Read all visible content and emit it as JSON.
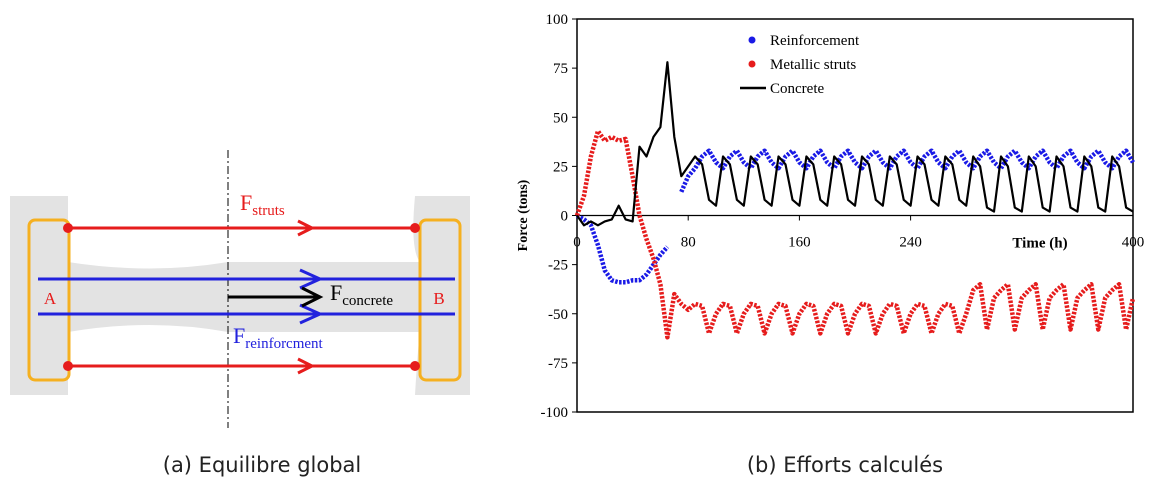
{
  "diagram": {
    "struts": {
      "symbol": "F",
      "subscript": "struts"
    },
    "concrete": {
      "symbol": "F",
      "subscript": "concrete"
    },
    "reinforcement": {
      "symbol": "F",
      "subscript": "reinforcment"
    },
    "left_end": "A",
    "right_end": "B"
  },
  "captions": [
    "(a) Equilibre global",
    "(b) Efforts calculés"
  ],
  "chart_data": {
    "type": "line",
    "y_label": "Force (tons)",
    "x_label": "Time (h)",
    "xlim": [
      0,
      400
    ],
    "ylim": [
      -100,
      100
    ],
    "xticks": [
      0,
      80,
      160,
      240,
      400
    ],
    "yticks": [
      -100,
      -75,
      -50,
      -25,
      0,
      25,
      50,
      75,
      100
    ],
    "grid": false,
    "legend": "upper right",
    "x": [
      0,
      5,
      10,
      15,
      20,
      25,
      30,
      35,
      40,
      45,
      50,
      55,
      60,
      65,
      70,
      75,
      80,
      85,
      90,
      95,
      100,
      105,
      110,
      115,
      120,
      125,
      130,
      135,
      140,
      145,
      150,
      155,
      160,
      165,
      170,
      175,
      180,
      185,
      190,
      195,
      200,
      205,
      210,
      215,
      220,
      225,
      230,
      235,
      240,
      245,
      250,
      255,
      260,
      265,
      270,
      275,
      280,
      285,
      290,
      295,
      300,
      305,
      310,
      315,
      320,
      325,
      330,
      335,
      340,
      345,
      350,
      355,
      360,
      365,
      370,
      375,
      380,
      385,
      390,
      395,
      400
    ],
    "series": [
      {
        "name": "Reinforcement",
        "color": "#1a1ae6",
        "mode": "markers",
        "values": [
          0,
          -2,
          -5,
          -15,
          -28,
          -33,
          -34,
          -34,
          -33,
          -33,
          -30,
          -25,
          -20,
          -16,
          null,
          12,
          20,
          24,
          30,
          33,
          27,
          24,
          30,
          33,
          27,
          24,
          30,
          33,
          27,
          24,
          30,
          33,
          27,
          24,
          30,
          33,
          27,
          24,
          30,
          33,
          27,
          24,
          30,
          33,
          27,
          24,
          30,
          33,
          27,
          24,
          30,
          33,
          27,
          24,
          30,
          33,
          27,
          24,
          30,
          33,
          27,
          24,
          30,
          33,
          27,
          24,
          30,
          33,
          27,
          24,
          30,
          33,
          27,
          24,
          30,
          33,
          27,
          24,
          30,
          33,
          27
        ]
      },
      {
        "name": "Metallic struts",
        "color": "#e61c1c",
        "mode": "markers",
        "values": [
          0,
          10,
          30,
          43,
          38,
          40,
          38,
          39,
          20,
          0,
          -12,
          -22,
          -35,
          -62,
          -40,
          -45,
          -48,
          -45,
          -46,
          -60,
          -50,
          -45,
          -46,
          -60,
          -50,
          -45,
          -46,
          -60,
          -50,
          -45,
          -46,
          -60,
          -50,
          -45,
          -46,
          -60,
          -50,
          -45,
          -46,
          -60,
          -50,
          -45,
          -46,
          -60,
          -50,
          -45,
          -46,
          -60,
          -50,
          -45,
          -46,
          -60,
          -50,
          -45,
          -46,
          -60,
          -50,
          -38,
          -35,
          -58,
          -42,
          -38,
          -35,
          -58,
          -42,
          -38,
          -35,
          -58,
          -42,
          -38,
          -35,
          -58,
          -42,
          -38,
          -35,
          -58,
          -42,
          -38,
          -35,
          -58,
          -42
        ]
      },
      {
        "name": "Concrete",
        "color": "#000000",
        "mode": "lines",
        "values": [
          0,
          -5,
          -3,
          -5,
          -3,
          -2,
          5,
          -2,
          -3,
          35,
          30,
          40,
          45,
          78,
          40,
          20,
          25,
          30,
          26,
          8,
          5,
          30,
          26,
          8,
          5,
          30,
          26,
          8,
          5,
          30,
          26,
          8,
          5,
          30,
          26,
          8,
          5,
          30,
          26,
          8,
          5,
          30,
          26,
          8,
          5,
          30,
          26,
          8,
          5,
          30,
          26,
          8,
          5,
          30,
          26,
          8,
          5,
          30,
          25,
          4,
          2,
          30,
          25,
          4,
          2,
          30,
          25,
          4,
          2,
          30,
          25,
          4,
          2,
          30,
          25,
          4,
          2,
          30,
          25,
          4,
          2
        ]
      }
    ]
  }
}
